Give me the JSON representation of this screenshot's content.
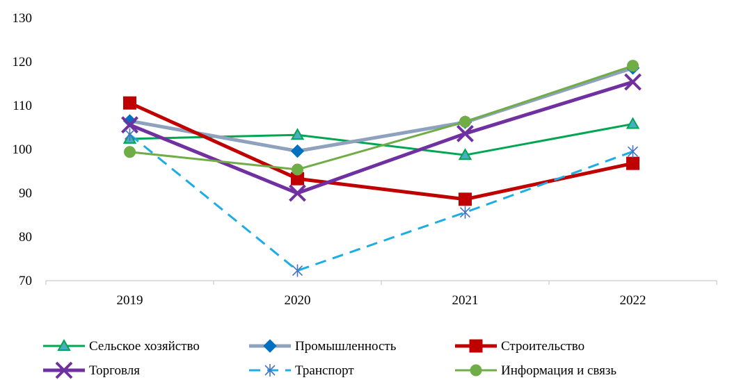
{
  "chart_data": {
    "type": "line",
    "title": "",
    "xlabel": "",
    "ylabel": "",
    "categories": [
      "2019",
      "2020",
      "2021",
      "2022"
    ],
    "ylim": [
      70,
      130
    ],
    "yticks": [
      70,
      80,
      90,
      100,
      110,
      120,
      130
    ],
    "grid": false,
    "legend_position": "bottom",
    "series": [
      {
        "name": "Сельское хозяйство",
        "values": [
          102.4,
          103.3,
          98.7,
          105.8
        ],
        "color": "#00A651",
        "marker": "triangle",
        "dash": "solid",
        "stroke": "thin"
      },
      {
        "name": "Промышленность",
        "values": [
          106.5,
          99.6,
          106.2,
          118.6
        ],
        "color": "#8EA2BE",
        "marker": "diamond",
        "marker_color": "#0070C0",
        "dash": "solid",
        "stroke": "thick"
      },
      {
        "name": "Строительство",
        "values": [
          110.6,
          93.3,
          88.6,
          96.8
        ],
        "color": "#C00000",
        "marker": "square",
        "dash": "solid",
        "stroke": "thick"
      },
      {
        "name": "Торговля",
        "values": [
          105.6,
          90.0,
          103.6,
          115.4
        ],
        "color": "#7030A0",
        "marker": "x",
        "dash": "solid",
        "stroke": "thick"
      },
      {
        "name": "Транспорт",
        "values": [
          103.4,
          72.3,
          85.6,
          99.5
        ],
        "color": "#1CADE4",
        "marker": "star",
        "marker_color": "#4472C4",
        "dash": "dashed",
        "stroke": "thin"
      },
      {
        "name": "Информация и связь",
        "values": [
          99.4,
          95.4,
          106.3,
          119.1
        ],
        "color": "#70AD47",
        "marker": "circle",
        "dash": "solid",
        "stroke": "thin"
      }
    ]
  }
}
